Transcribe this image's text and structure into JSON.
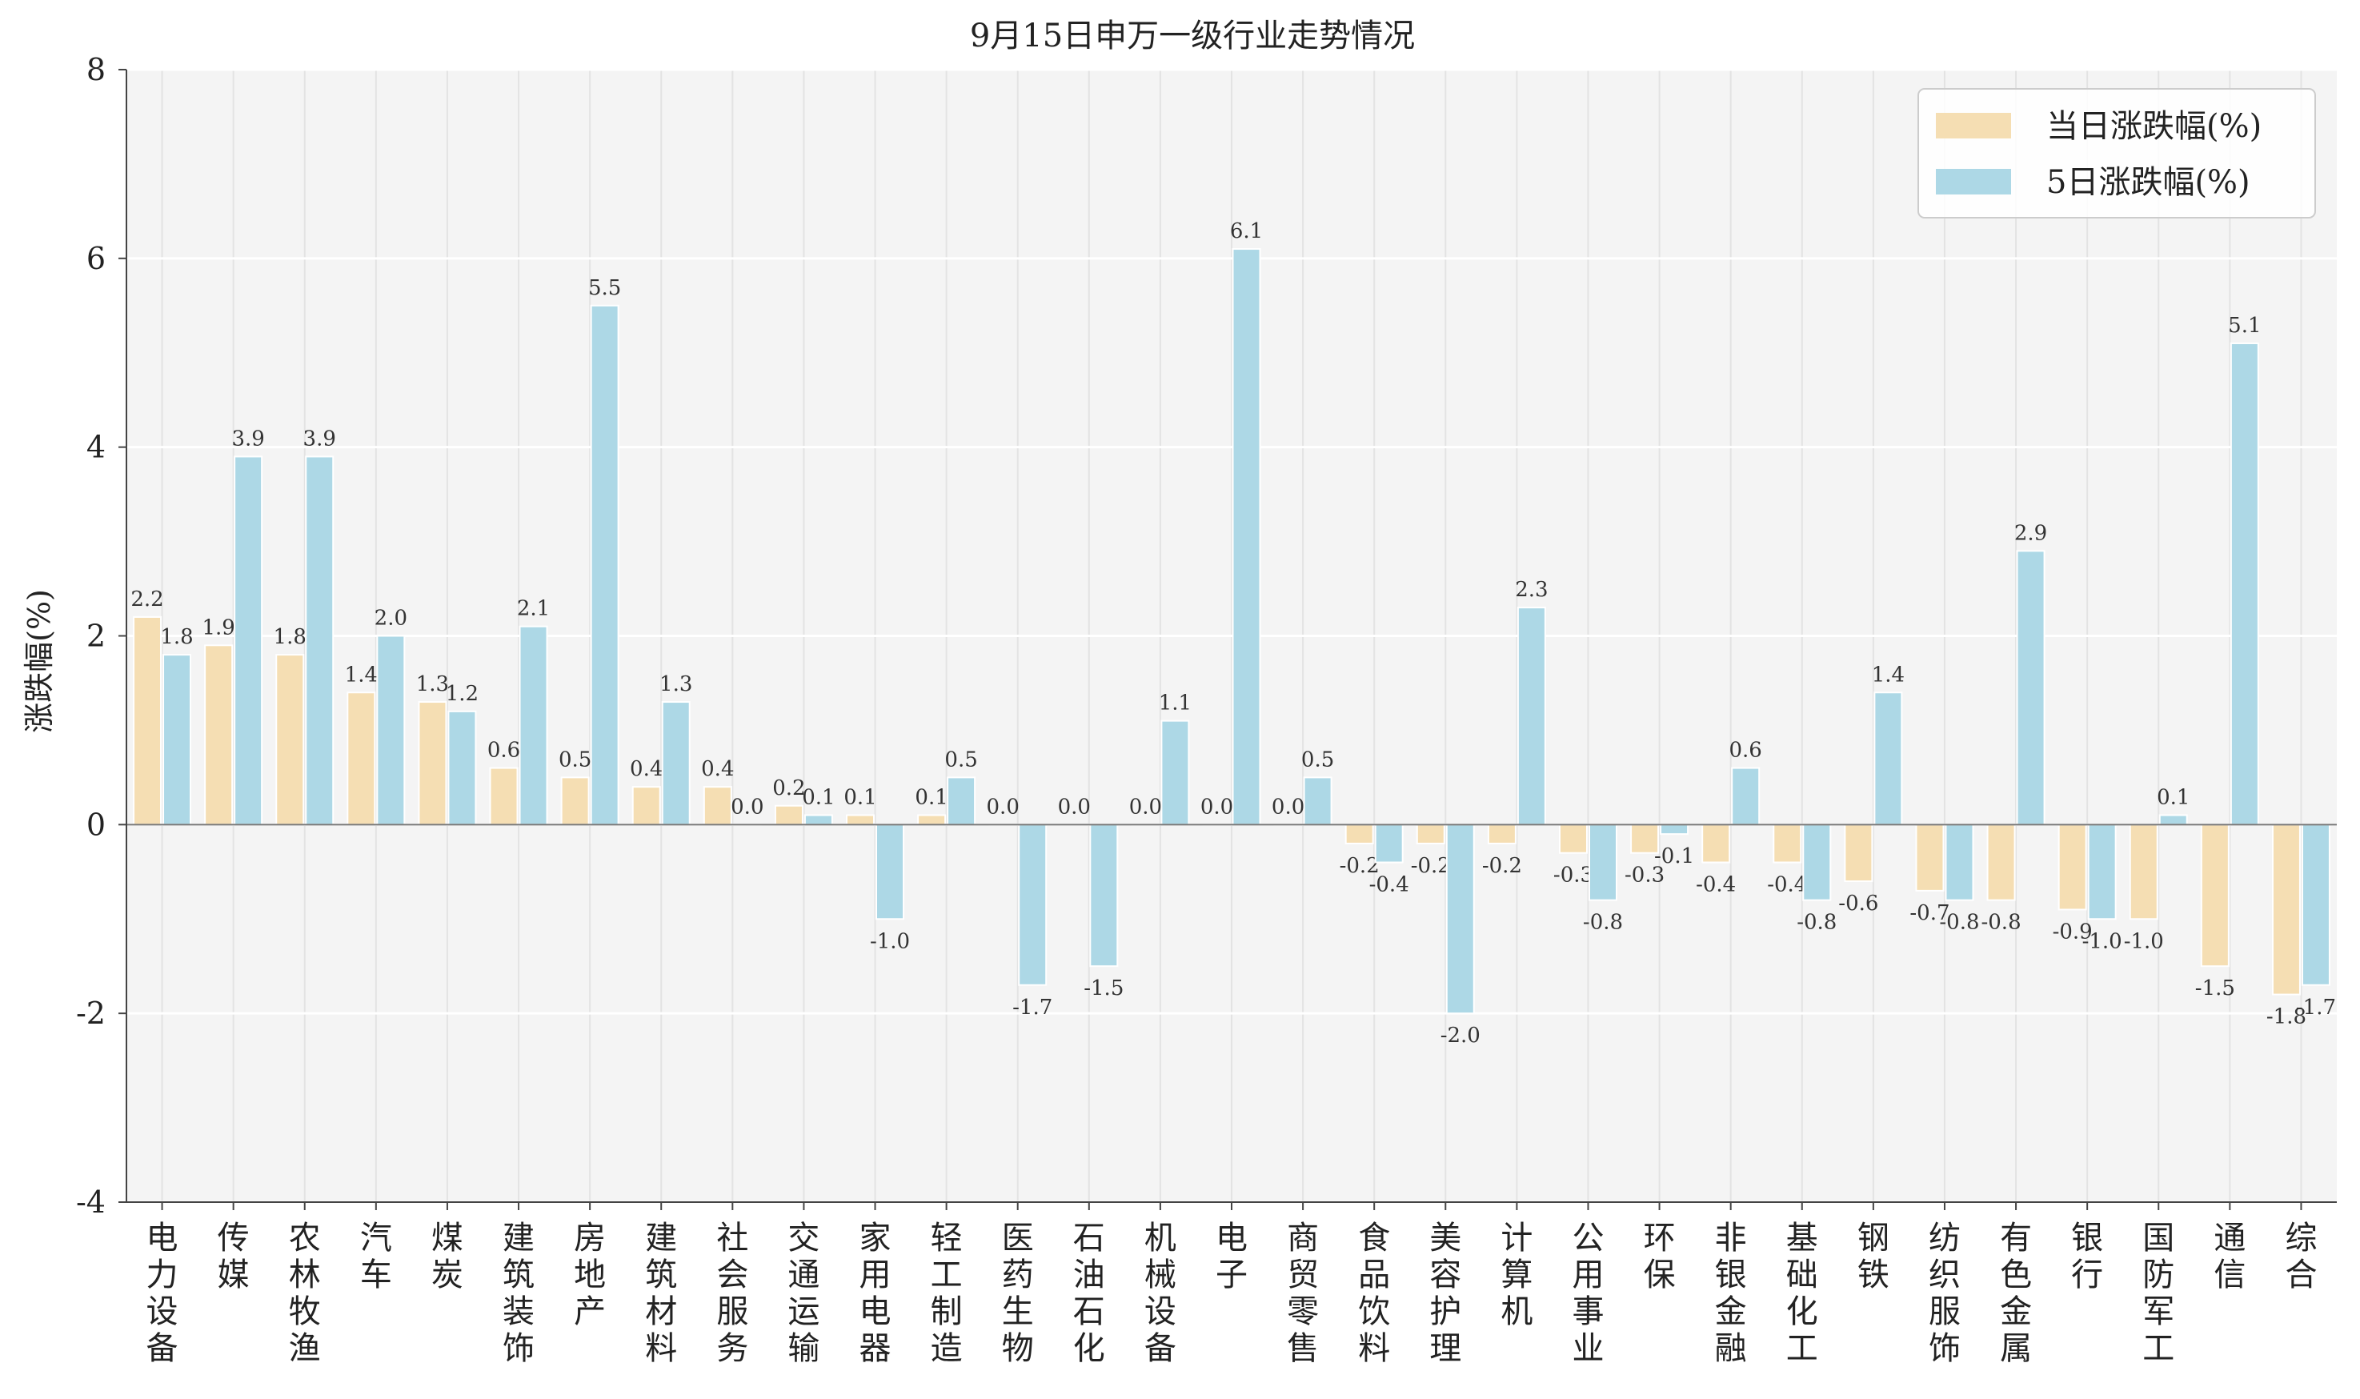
{
  "chart_data": {
    "type": "bar",
    "title": "9月15日申万一级行业走势情况",
    "xlabel": "",
    "ylabel": "涨跌幅(%)",
    "ylim": [
      -4,
      8
    ],
    "yticks": [
      -4,
      -2,
      0,
      2,
      4,
      6,
      8
    ],
    "grid": true,
    "legend_position": "top-right",
    "categories": [
      "电力设备",
      "传媒",
      "农林牧渔",
      "汽车",
      "煤炭",
      "建筑装饰",
      "房地产",
      "建筑材料",
      "社会服务",
      "交通运输",
      "家用电器",
      "轻工制造",
      "医药生物",
      "石油石化",
      "机械设备",
      "电子",
      "商贸零售",
      "食品饮料",
      "美容护理",
      "计算机",
      "公用事业",
      "环保",
      "非银金融",
      "基础化工",
      "钢铁",
      "纺织服饰",
      "有色金属",
      "银行",
      "国防军工",
      "通信",
      "综合"
    ],
    "series": [
      {
        "name": "当日涨跌幅(%)",
        "color": "#f5deb3",
        "values": [
          2.2,
          1.9,
          1.8,
          1.4,
          1.3,
          0.6,
          0.5,
          0.4,
          0.4,
          0.2,
          0.1,
          0.1,
          0.0,
          0.0,
          0.0,
          0.0,
          0.0,
          -0.2,
          -0.2,
          -0.2,
          -0.3,
          -0.3,
          -0.4,
          -0.4,
          -0.6,
          -0.7,
          -0.8,
          -0.9,
          -1.0,
          -1.5,
          -1.8
        ]
      },
      {
        "name": "5日涨跌幅(%)",
        "color": "#add8e6",
        "values": [
          1.8,
          3.9,
          3.9,
          2.0,
          1.2,
          2.1,
          5.5,
          1.3,
          0.0,
          0.1,
          -1.0,
          0.5,
          -1.7,
          -1.5,
          1.1,
          6.1,
          0.5,
          -0.4,
          -2.0,
          2.3,
          -0.8,
          -0.1,
          0.6,
          -0.8,
          1.4,
          -0.8,
          2.9,
          -1.0,
          0.1,
          5.1,
          -1.7
        ]
      }
    ]
  },
  "colors": {
    "plot_background": "#f4f4f4",
    "grid": "#e3e3e3",
    "axis": "#444444",
    "zero_line": "#777777"
  }
}
